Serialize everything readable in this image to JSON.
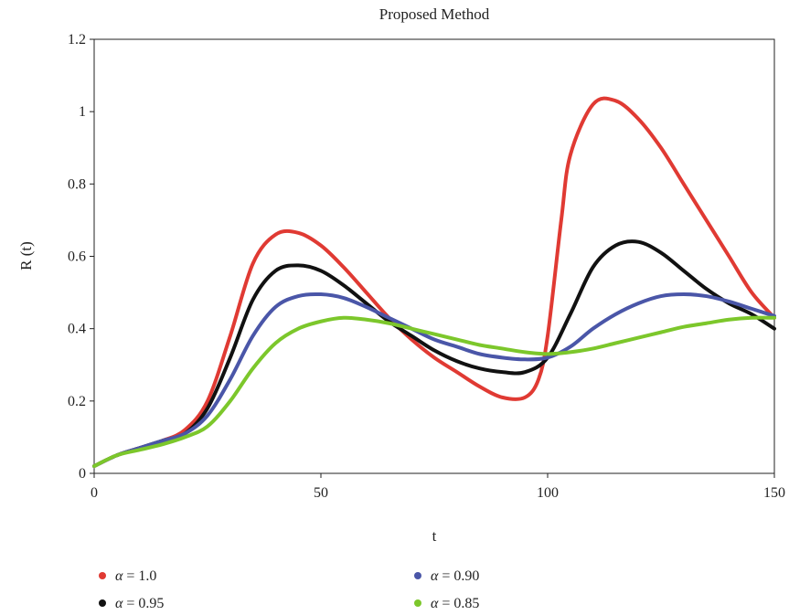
{
  "chart_data": {
    "type": "line",
    "title": "Proposed Method",
    "xlabel": "t",
    "ylabel": "R (t)",
    "xlim": [
      0,
      150
    ],
    "ylim": [
      0,
      1.2
    ],
    "xticks": [
      0,
      50,
      100,
      150
    ],
    "yticks": [
      0,
      0.2,
      0.4,
      0.6,
      0.8,
      1,
      1.2
    ],
    "ytick_labels": [
      "0",
      "0.2",
      "0.4",
      "0.6",
      "0.8",
      "1",
      "1.2"
    ],
    "grid": false,
    "legend_position": "bottom",
    "legend_symbol": "α",
    "series": [
      {
        "name": "α = 1.0",
        "color": "#e03a33",
        "x": [
          0,
          5,
          10,
          15,
          20,
          25,
          30,
          35,
          40,
          45,
          50,
          55,
          60,
          65,
          70,
          75,
          80,
          85,
          90,
          95,
          98,
          100,
          103,
          105,
          110,
          115,
          120,
          125,
          130,
          135,
          140,
          145,
          150
        ],
        "y": [
          0.02,
          0.05,
          0.07,
          0.09,
          0.12,
          0.2,
          0.38,
          0.58,
          0.66,
          0.665,
          0.63,
          0.57,
          0.5,
          0.43,
          0.37,
          0.32,
          0.28,
          0.24,
          0.21,
          0.21,
          0.26,
          0.38,
          0.7,
          0.88,
          1.02,
          1.03,
          0.98,
          0.9,
          0.8,
          0.7,
          0.6,
          0.5,
          0.43
        ]
      },
      {
        "name": "α = 0.95",
        "color": "#111111",
        "x": [
          0,
          5,
          10,
          15,
          20,
          25,
          30,
          35,
          40,
          45,
          50,
          55,
          60,
          65,
          70,
          75,
          80,
          85,
          90,
          95,
          100,
          105,
          110,
          115,
          120,
          125,
          130,
          135,
          140,
          145,
          150
        ],
        "y": [
          0.02,
          0.05,
          0.07,
          0.09,
          0.11,
          0.18,
          0.32,
          0.48,
          0.56,
          0.575,
          0.56,
          0.52,
          0.47,
          0.42,
          0.38,
          0.34,
          0.31,
          0.29,
          0.28,
          0.28,
          0.32,
          0.44,
          0.57,
          0.63,
          0.64,
          0.61,
          0.56,
          0.51,
          0.47,
          0.44,
          0.4
        ]
      },
      {
        "name": "α = 0.90",
        "color": "#4a56a8",
        "x": [
          0,
          5,
          10,
          15,
          20,
          25,
          30,
          35,
          40,
          45,
          50,
          55,
          60,
          65,
          70,
          75,
          80,
          85,
          90,
          95,
          100,
          105,
          110,
          115,
          120,
          125,
          130,
          135,
          140,
          145,
          150
        ],
        "y": [
          0.02,
          0.05,
          0.07,
          0.09,
          0.11,
          0.16,
          0.26,
          0.38,
          0.46,
          0.49,
          0.495,
          0.485,
          0.46,
          0.43,
          0.4,
          0.37,
          0.35,
          0.33,
          0.32,
          0.315,
          0.32,
          0.35,
          0.4,
          0.44,
          0.47,
          0.49,
          0.495,
          0.49,
          0.475,
          0.455,
          0.435
        ]
      },
      {
        "name": "α = 0.85",
        "color": "#7cc72b",
        "x": [
          0,
          5,
          10,
          15,
          20,
          25,
          30,
          35,
          40,
          45,
          50,
          55,
          60,
          65,
          70,
          75,
          80,
          85,
          90,
          95,
          100,
          105,
          110,
          115,
          120,
          125,
          130,
          135,
          140,
          145,
          150
        ],
        "y": [
          0.02,
          0.05,
          0.065,
          0.08,
          0.1,
          0.13,
          0.2,
          0.29,
          0.36,
          0.4,
          0.42,
          0.43,
          0.425,
          0.415,
          0.4,
          0.385,
          0.37,
          0.355,
          0.345,
          0.335,
          0.33,
          0.335,
          0.345,
          0.36,
          0.375,
          0.39,
          0.405,
          0.415,
          0.425,
          0.43,
          0.43
        ]
      }
    ]
  }
}
